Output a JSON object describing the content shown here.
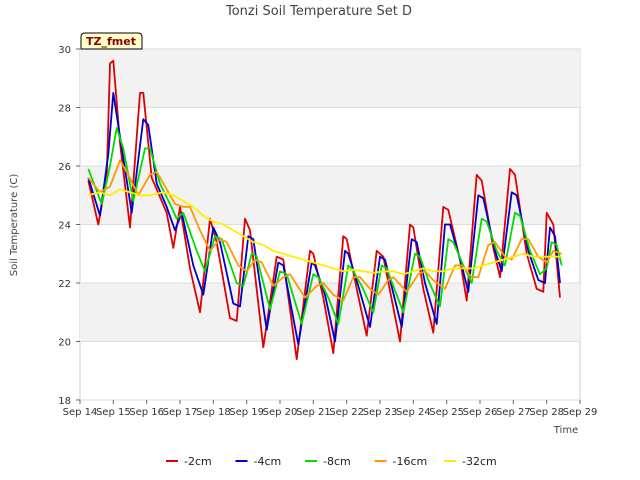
{
  "chart_data": {
    "type": "line",
    "title": "Tonzi Soil Temperature Set D",
    "xlabel": "Time",
    "ylabel": "Soil Temperature (C)",
    "tag": "TZ_fmet",
    "xlim": [
      14,
      29
    ],
    "ylim": [
      18,
      30
    ],
    "x_ticks": [
      {
        "v": 14,
        "label": "Sep 14"
      },
      {
        "v": 15,
        "label": "Sep 15"
      },
      {
        "v": 16,
        "label": "Sep 16"
      },
      {
        "v": 17,
        "label": "Sep 17"
      },
      {
        "v": 18,
        "label": "Sep 18"
      },
      {
        "v": 19,
        "label": "Sep 19"
      },
      {
        "v": 20,
        "label": "Sep 20"
      },
      {
        "v": 21,
        "label": "Sep 21"
      },
      {
        "v": 22,
        "label": "Sep 22"
      },
      {
        "v": 23,
        "label": "Sep 23"
      },
      {
        "v": 24,
        "label": "Sep 24"
      },
      {
        "v": 25,
        "label": "Sep 25"
      },
      {
        "v": 26,
        "label": "Sep 26"
      },
      {
        "v": 27,
        "label": "Sep 27"
      },
      {
        "v": 28,
        "label": "Sep 28"
      },
      {
        "v": 29,
        "label": "Sep 29"
      }
    ],
    "y_ticks": [
      18,
      20,
      22,
      24,
      26,
      28,
      30
    ],
    "grid": true,
    "legend_position": "bottom",
    "series": [
      {
        "name": "-2cm",
        "color": "#e00000",
        "points": [
          [
            14.25,
            25.5
          ],
          [
            14.55,
            24.0
          ],
          [
            14.8,
            25.6
          ],
          [
            14.9,
            29.5
          ],
          [
            15.0,
            29.6
          ],
          [
            15.2,
            26.8
          ],
          [
            15.5,
            23.9
          ],
          [
            15.8,
            28.5
          ],
          [
            15.9,
            28.5
          ],
          [
            16.15,
            25.6
          ],
          [
            16.6,
            24.4
          ],
          [
            16.8,
            23.2
          ],
          [
            17.0,
            24.6
          ],
          [
            17.3,
            22.5
          ],
          [
            17.6,
            21.0
          ],
          [
            17.9,
            24.2
          ],
          [
            18.1,
            23.4
          ],
          [
            18.5,
            20.8
          ],
          [
            18.7,
            20.7
          ],
          [
            18.95,
            24.2
          ],
          [
            19.1,
            23.8
          ],
          [
            19.5,
            19.8
          ],
          [
            19.9,
            22.9
          ],
          [
            20.1,
            22.8
          ],
          [
            20.5,
            19.4
          ],
          [
            20.9,
            23.1
          ],
          [
            21.0,
            23.0
          ],
          [
            21.3,
            21.5
          ],
          [
            21.6,
            19.6
          ],
          [
            21.9,
            23.6
          ],
          [
            22.0,
            23.5
          ],
          [
            22.3,
            21.8
          ],
          [
            22.6,
            20.2
          ],
          [
            22.9,
            23.1
          ],
          [
            23.1,
            22.9
          ],
          [
            23.6,
            20.0
          ],
          [
            23.9,
            24.0
          ],
          [
            24.0,
            23.9
          ],
          [
            24.3,
            21.8
          ],
          [
            24.6,
            20.3
          ],
          [
            24.9,
            24.6
          ],
          [
            25.05,
            24.5
          ],
          [
            25.4,
            22.8
          ],
          [
            25.6,
            21.4
          ],
          [
            25.9,
            25.7
          ],
          [
            26.05,
            25.5
          ],
          [
            26.4,
            23.2
          ],
          [
            26.6,
            22.2
          ],
          [
            26.9,
            25.9
          ],
          [
            27.05,
            25.7
          ],
          [
            27.4,
            23.0
          ],
          [
            27.7,
            21.8
          ],
          [
            27.9,
            21.7
          ],
          [
            28.0,
            24.4
          ],
          [
            28.2,
            24.0
          ],
          [
            28.4,
            21.5
          ]
        ]
      },
      {
        "name": "-4cm",
        "color": "#0000cc",
        "points": [
          [
            14.25,
            25.6
          ],
          [
            14.6,
            24.3
          ],
          [
            14.85,
            26.4
          ],
          [
            15.0,
            28.5
          ],
          [
            15.2,
            27.0
          ],
          [
            15.55,
            24.4
          ],
          [
            15.9,
            27.6
          ],
          [
            16.05,
            27.4
          ],
          [
            16.3,
            25.4
          ],
          [
            16.6,
            24.6
          ],
          [
            16.85,
            23.8
          ],
          [
            17.05,
            24.4
          ],
          [
            17.4,
            22.6
          ],
          [
            17.7,
            21.6
          ],
          [
            18.0,
            23.9
          ],
          [
            18.2,
            23.4
          ],
          [
            18.6,
            21.3
          ],
          [
            18.8,
            21.2
          ],
          [
            19.05,
            23.6
          ],
          [
            19.2,
            23.5
          ],
          [
            19.6,
            20.4
          ],
          [
            19.95,
            22.7
          ],
          [
            20.1,
            22.6
          ],
          [
            20.55,
            19.9
          ],
          [
            20.95,
            22.7
          ],
          [
            21.05,
            22.6
          ],
          [
            21.35,
            21.6
          ],
          [
            21.65,
            20.0
          ],
          [
            21.95,
            23.1
          ],
          [
            22.05,
            23.0
          ],
          [
            22.35,
            21.9
          ],
          [
            22.7,
            20.5
          ],
          [
            23.0,
            22.9
          ],
          [
            23.15,
            22.8
          ],
          [
            23.65,
            20.5
          ],
          [
            23.95,
            23.5
          ],
          [
            24.1,
            23.4
          ],
          [
            24.35,
            22.0
          ],
          [
            24.7,
            20.6
          ],
          [
            24.95,
            24.0
          ],
          [
            25.1,
            24.0
          ],
          [
            25.45,
            22.6
          ],
          [
            25.65,
            21.7
          ],
          [
            25.95,
            25.0
          ],
          [
            26.1,
            24.9
          ],
          [
            26.45,
            23.1
          ],
          [
            26.65,
            22.4
          ],
          [
            26.95,
            25.1
          ],
          [
            27.1,
            25.0
          ],
          [
            27.45,
            23.1
          ],
          [
            27.75,
            22.1
          ],
          [
            27.95,
            22.0
          ],
          [
            28.1,
            23.9
          ],
          [
            28.25,
            23.6
          ],
          [
            28.4,
            22.0
          ]
        ]
      },
      {
        "name": "-8cm",
        "color": "#00dd00",
        "points": [
          [
            14.25,
            25.9
          ],
          [
            14.65,
            24.7
          ],
          [
            14.9,
            26.0
          ],
          [
            15.1,
            27.3
          ],
          [
            15.3,
            26.6
          ],
          [
            15.6,
            24.8
          ],
          [
            15.95,
            26.6
          ],
          [
            16.1,
            26.6
          ],
          [
            16.4,
            25.4
          ],
          [
            16.7,
            24.7
          ],
          [
            16.9,
            24.2
          ],
          [
            17.1,
            24.4
          ],
          [
            17.5,
            23.1
          ],
          [
            17.75,
            22.4
          ],
          [
            18.05,
            23.6
          ],
          [
            18.25,
            23.5
          ],
          [
            18.7,
            22.0
          ],
          [
            18.9,
            21.9
          ],
          [
            19.15,
            23.0
          ],
          [
            19.3,
            22.9
          ],
          [
            19.7,
            21.1
          ],
          [
            20.0,
            22.4
          ],
          [
            20.2,
            22.3
          ],
          [
            20.65,
            20.6
          ],
          [
            21.0,
            22.3
          ],
          [
            21.15,
            22.2
          ],
          [
            21.45,
            21.5
          ],
          [
            21.75,
            20.6
          ],
          [
            22.05,
            22.6
          ],
          [
            22.15,
            22.5
          ],
          [
            22.45,
            21.9
          ],
          [
            22.8,
            21.0
          ],
          [
            23.05,
            22.6
          ],
          [
            23.2,
            22.5
          ],
          [
            23.7,
            21.0
          ],
          [
            24.05,
            23.0
          ],
          [
            24.2,
            22.9
          ],
          [
            24.45,
            22.1
          ],
          [
            24.8,
            21.2
          ],
          [
            25.05,
            23.5
          ],
          [
            25.2,
            23.4
          ],
          [
            25.5,
            22.6
          ],
          [
            25.75,
            22.0
          ],
          [
            26.05,
            24.2
          ],
          [
            26.2,
            24.1
          ],
          [
            26.5,
            23.1
          ],
          [
            26.75,
            22.6
          ],
          [
            27.05,
            24.4
          ],
          [
            27.2,
            24.3
          ],
          [
            27.5,
            23.1
          ],
          [
            27.8,
            22.3
          ],
          [
            28.0,
            22.5
          ],
          [
            28.15,
            23.4
          ],
          [
            28.3,
            23.3
          ],
          [
            28.45,
            22.6
          ]
        ]
      },
      {
        "name": "-16cm",
        "color": "#ff9900",
        "points": [
          [
            14.25,
            25.6
          ],
          [
            14.6,
            25.1
          ],
          [
            14.9,
            25.3
          ],
          [
            15.2,
            26.2
          ],
          [
            15.45,
            25.7
          ],
          [
            15.75,
            25.0
          ],
          [
            16.1,
            25.7
          ],
          [
            16.3,
            25.8
          ],
          [
            16.6,
            25.2
          ],
          [
            16.85,
            24.7
          ],
          [
            17.1,
            24.6
          ],
          [
            17.3,
            24.6
          ],
          [
            17.6,
            23.8
          ],
          [
            17.9,
            23.1
          ],
          [
            18.2,
            23.5
          ],
          [
            18.4,
            23.4
          ],
          [
            18.75,
            22.6
          ],
          [
            19.0,
            22.4
          ],
          [
            19.25,
            22.8
          ],
          [
            19.45,
            22.7
          ],
          [
            19.8,
            21.9
          ],
          [
            20.1,
            22.2
          ],
          [
            20.3,
            22.3
          ],
          [
            20.75,
            21.5
          ],
          [
            21.1,
            21.9
          ],
          [
            21.3,
            22.0
          ],
          [
            21.6,
            21.6
          ],
          [
            21.9,
            21.4
          ],
          [
            22.2,
            22.2
          ],
          [
            22.4,
            22.2
          ],
          [
            22.7,
            21.8
          ],
          [
            22.95,
            21.6
          ],
          [
            23.25,
            22.1
          ],
          [
            23.4,
            22.2
          ],
          [
            23.8,
            21.7
          ],
          [
            24.15,
            22.3
          ],
          [
            24.35,
            22.4
          ],
          [
            24.6,
            22.1
          ],
          [
            24.95,
            21.8
          ],
          [
            25.25,
            22.6
          ],
          [
            25.45,
            22.6
          ],
          [
            25.75,
            22.2
          ],
          [
            25.95,
            22.2
          ],
          [
            26.25,
            23.3
          ],
          [
            26.45,
            23.4
          ],
          [
            26.75,
            22.9
          ],
          [
            26.95,
            22.8
          ],
          [
            27.25,
            23.5
          ],
          [
            27.45,
            23.5
          ],
          [
            27.75,
            22.9
          ],
          [
            28.0,
            22.7
          ],
          [
            28.2,
            23.1
          ],
          [
            28.45,
            23.0
          ]
        ]
      },
      {
        "name": "-32cm",
        "color": "#ffee00",
        "points": [
          [
            14.25,
            25.0
          ],
          [
            14.6,
            25.1
          ],
          [
            14.9,
            25.0
          ],
          [
            15.2,
            25.2
          ],
          [
            15.5,
            25.1
          ],
          [
            15.8,
            25.0
          ],
          [
            16.1,
            25.0
          ],
          [
            16.5,
            25.1
          ],
          [
            16.8,
            25.0
          ],
          [
            17.1,
            24.8
          ],
          [
            17.4,
            24.6
          ],
          [
            17.7,
            24.3
          ],
          [
            18.0,
            24.1
          ],
          [
            18.3,
            24.0
          ],
          [
            18.6,
            23.8
          ],
          [
            18.9,
            23.6
          ],
          [
            19.2,
            23.4
          ],
          [
            19.5,
            23.3
          ],
          [
            19.8,
            23.1
          ],
          [
            20.1,
            23.0
          ],
          [
            20.4,
            22.9
          ],
          [
            20.7,
            22.8
          ],
          [
            21.0,
            22.7
          ],
          [
            21.3,
            22.6
          ],
          [
            21.6,
            22.5
          ],
          [
            21.9,
            22.4
          ],
          [
            22.2,
            22.45
          ],
          [
            22.5,
            22.4
          ],
          [
            22.8,
            22.35
          ],
          [
            23.1,
            22.4
          ],
          [
            23.4,
            22.4
          ],
          [
            23.7,
            22.3
          ],
          [
            24.0,
            22.4
          ],
          [
            24.3,
            22.5
          ],
          [
            24.6,
            22.4
          ],
          [
            24.9,
            22.4
          ],
          [
            25.2,
            22.5
          ],
          [
            25.5,
            22.5
          ],
          [
            25.8,
            22.5
          ],
          [
            26.1,
            22.6
          ],
          [
            26.4,
            22.7
          ],
          [
            26.7,
            22.8
          ],
          [
            27.0,
            22.9
          ],
          [
            27.3,
            23.0
          ],
          [
            27.6,
            22.9
          ],
          [
            27.9,
            22.9
          ],
          [
            28.2,
            22.9
          ],
          [
            28.45,
            22.9
          ]
        ]
      }
    ]
  }
}
